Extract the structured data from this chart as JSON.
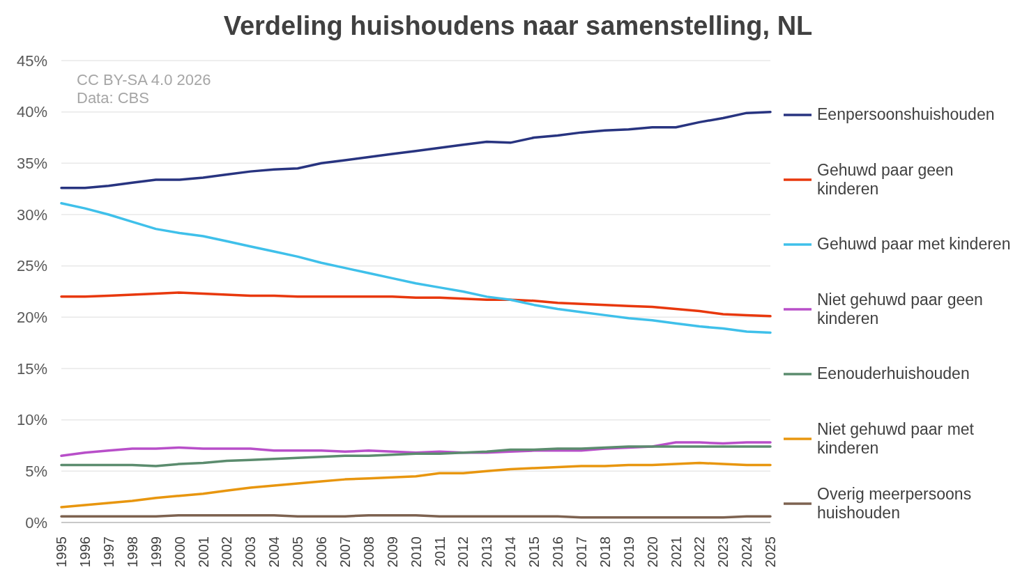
{
  "chart_data": {
    "type": "line",
    "title": "Verdeling huishoudens naar samenstelling, NL",
    "annotations": [
      "CC BY-SA 4.0 2026",
      "Data: CBS"
    ],
    "categories": [
      "1995",
      "1996",
      "1997",
      "1998",
      "1999",
      "2000",
      "2001",
      "2002",
      "2003",
      "2004",
      "2005",
      "2006",
      "2007",
      "2008",
      "2009",
      "2010",
      "2011",
      "2012",
      "2013",
      "2014",
      "2015",
      "2016",
      "2017",
      "2018",
      "2019",
      "2020",
      "2021",
      "2022",
      "2023",
      "2024",
      "2025"
    ],
    "series": [
      {
        "name": "Eenpersoonshuishouden",
        "color": "#283480",
        "values": [
          32.6,
          32.6,
          32.8,
          33.1,
          33.4,
          33.4,
          33.6,
          33.9,
          34.2,
          34.4,
          34.5,
          35.0,
          35.3,
          35.6,
          35.9,
          36.2,
          36.5,
          36.8,
          37.1,
          37.0,
          37.5,
          37.7,
          38.0,
          38.2,
          38.3,
          38.5,
          38.5,
          39.0,
          39.4,
          39.9,
          40.0
        ]
      },
      {
        "name": "Gehuwd paar geen kinderen",
        "color": "#e8380d",
        "values": [
          22.0,
          22.0,
          22.1,
          22.2,
          22.3,
          22.4,
          22.3,
          22.2,
          22.1,
          22.1,
          22.0,
          22.0,
          22.0,
          22.0,
          22.0,
          21.9,
          21.9,
          21.8,
          21.7,
          21.7,
          21.6,
          21.4,
          21.3,
          21.2,
          21.1,
          21.0,
          20.8,
          20.6,
          20.3,
          20.2,
          20.1
        ]
      },
      {
        "name": "Gehuwd paar met kinderen",
        "color": "#3fc0ea",
        "values": [
          31.1,
          30.6,
          30.0,
          29.3,
          28.6,
          28.2,
          27.9,
          27.4,
          26.9,
          26.4,
          25.9,
          25.3,
          24.8,
          24.3,
          23.8,
          23.3,
          22.9,
          22.5,
          22.0,
          21.7,
          21.2,
          20.8,
          20.5,
          20.2,
          19.9,
          19.7,
          19.4,
          19.1,
          18.9,
          18.6,
          18.5
        ]
      },
      {
        "name": "Niet gehuwd paar geen kinderen",
        "color": "#b84fc9",
        "values": [
          6.5,
          6.8,
          7.0,
          7.2,
          7.2,
          7.3,
          7.2,
          7.2,
          7.2,
          7.0,
          7.0,
          7.0,
          6.9,
          7.0,
          6.9,
          6.8,
          6.9,
          6.8,
          6.8,
          6.9,
          7.0,
          7.0,
          7.0,
          7.2,
          7.3,
          7.4,
          7.8,
          7.8,
          7.7,
          7.8,
          7.8
        ]
      },
      {
        "name": "Eenouderhuishouden",
        "color": "#5b8c6e",
        "values": [
          5.6,
          5.6,
          5.6,
          5.6,
          5.5,
          5.7,
          5.8,
          6.0,
          6.1,
          6.2,
          6.3,
          6.4,
          6.5,
          6.5,
          6.6,
          6.7,
          6.7,
          6.8,
          6.9,
          7.1,
          7.1,
          7.2,
          7.2,
          7.3,
          7.4,
          7.4,
          7.4,
          7.4,
          7.4,
          7.4,
          7.4
        ]
      },
      {
        "name": "Niet gehuwd paar met kinderen",
        "color": "#e8960f",
        "values": [
          1.5,
          1.7,
          1.9,
          2.1,
          2.4,
          2.6,
          2.8,
          3.1,
          3.4,
          3.6,
          3.8,
          4.0,
          4.2,
          4.3,
          4.4,
          4.5,
          4.8,
          4.8,
          5.0,
          5.2,
          5.3,
          5.4,
          5.5,
          5.5,
          5.6,
          5.6,
          5.7,
          5.8,
          5.7,
          5.6,
          5.6
        ]
      },
      {
        "name": "Overig meerpersoons huishouden",
        "color": "#7d6250",
        "values": [
          0.6,
          0.6,
          0.6,
          0.6,
          0.6,
          0.7,
          0.7,
          0.7,
          0.7,
          0.7,
          0.6,
          0.6,
          0.6,
          0.7,
          0.7,
          0.7,
          0.6,
          0.6,
          0.6,
          0.6,
          0.6,
          0.6,
          0.5,
          0.5,
          0.5,
          0.5,
          0.5,
          0.5,
          0.5,
          0.6,
          0.6
        ]
      }
    ],
    "ylim": [
      0,
      45
    ],
    "yticks": [
      {
        "value": 0,
        "label": "0%"
      },
      {
        "value": 5,
        "label": "5%"
      },
      {
        "value": 10,
        "label": "10%"
      },
      {
        "value": 15,
        "label": "15%"
      },
      {
        "value": 20,
        "label": "20%"
      },
      {
        "value": 25,
        "label": "25%"
      },
      {
        "value": 30,
        "label": "30%"
      },
      {
        "value": 35,
        "label": "35%"
      },
      {
        "value": 40,
        "label": "40%"
      },
      {
        "value": 45,
        "label": "45%"
      }
    ],
    "grid": "y",
    "legend": "right",
    "marker": "none",
    "line_style": "solid"
  }
}
